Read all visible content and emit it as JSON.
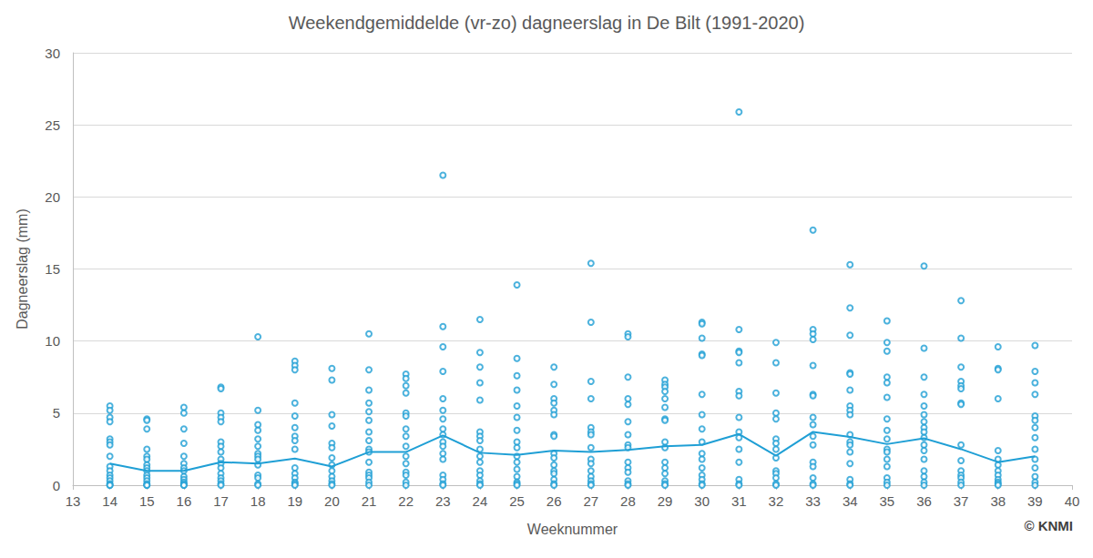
{
  "chart_data": {
    "type": "scatter",
    "title": "Weekendgemiddelde (vr-zo) dagneerslag in De Bilt (1991-2020)",
    "x_label": "Weeknummer",
    "y_label": "Dagneerslag (mm)",
    "annotation": "© KNMI",
    "xlim": [
      13,
      40
    ],
    "xticks": [
      13,
      14,
      15,
      16,
      17,
      18,
      19,
      20,
      21,
      22,
      23,
      24,
      25,
      26,
      27,
      28,
      29,
      30,
      31,
      32,
      33,
      34,
      35,
      36,
      37,
      38,
      39,
      40
    ],
    "ylim": [
      0,
      30
    ],
    "yticks": [
      0,
      5,
      10,
      15,
      20,
      25,
      30
    ],
    "grid": true,
    "series": [
      {
        "type": "scatter",
        "color": "#1f9fd5",
        "marker": "circle-open",
        "x": [
          14,
          14,
          14,
          14,
          14,
          14,
          14,
          14,
          14,
          14,
          14,
          14,
          14,
          14,
          14,
          14,
          15,
          15,
          15,
          15,
          15,
          15,
          15,
          15,
          15,
          15,
          15,
          15,
          15,
          15,
          15,
          16,
          16,
          16,
          16,
          16,
          16,
          16,
          16,
          16,
          16,
          16,
          16,
          16,
          16,
          17,
          17,
          17,
          17,
          17,
          17,
          17,
          17,
          17,
          17,
          17,
          17,
          17,
          17,
          17,
          17,
          18,
          18,
          18,
          18,
          18,
          18,
          18,
          18,
          18,
          18,
          18,
          18,
          18,
          18,
          19,
          19,
          19,
          19,
          19,
          19,
          19,
          19,
          19,
          19,
          19,
          19,
          19,
          19,
          19,
          20,
          20,
          20,
          20,
          20,
          20,
          20,
          20,
          20,
          20,
          20,
          20,
          20,
          21,
          21,
          21,
          21,
          21,
          21,
          21,
          21,
          21,
          21,
          21,
          21,
          21,
          21,
          21,
          21,
          22,
          22,
          22,
          22,
          22,
          22,
          22,
          22,
          22,
          22,
          22,
          22,
          22,
          22,
          22,
          23,
          23,
          23,
          23,
          23,
          23,
          23,
          23,
          23,
          23,
          23,
          23,
          23,
          23,
          23,
          23,
          23,
          24,
          24,
          24,
          24,
          24,
          24,
          24,
          24,
          24,
          24,
          24,
          24,
          24,
          24,
          24,
          24,
          25,
          25,
          25,
          25,
          25,
          25,
          25,
          25,
          25,
          25,
          25,
          25,
          25,
          25,
          25,
          25,
          26,
          26,
          26,
          26,
          26,
          26,
          26,
          26,
          26,
          26,
          26,
          26,
          26,
          26,
          26,
          26,
          27,
          27,
          27,
          27,
          27,
          27,
          27,
          27,
          27,
          27,
          27,
          27,
          27,
          27,
          27,
          28,
          28,
          28,
          28,
          28,
          28,
          28,
          28,
          28,
          28,
          28,
          28,
          28,
          28,
          28,
          29,
          29,
          29,
          29,
          29,
          29,
          29,
          29,
          29,
          29,
          29,
          29,
          29,
          29,
          29,
          29,
          30,
          30,
          30,
          30,
          30,
          30,
          30,
          30,
          30,
          30,
          30,
          30,
          30,
          30,
          30,
          30,
          31,
          31,
          31,
          31,
          31,
          31,
          31,
          31,
          31,
          31,
          31,
          31,
          31,
          31,
          31,
          32,
          32,
          32,
          32,
          32,
          32,
          32,
          32,
          32,
          32,
          32,
          32,
          32,
          32,
          33,
          33,
          33,
          33,
          33,
          33,
          33,
          33,
          33,
          33,
          33,
          33,
          33,
          33,
          33,
          33,
          34,
          34,
          34,
          34,
          34,
          34,
          34,
          34,
          34,
          34,
          34,
          34,
          34,
          34,
          34,
          34,
          34,
          35,
          35,
          35,
          35,
          35,
          35,
          35,
          35,
          35,
          35,
          35,
          35,
          35,
          35,
          35,
          35,
          36,
          36,
          36,
          36,
          36,
          36,
          36,
          36,
          36,
          36,
          36,
          36,
          36,
          36,
          36,
          36,
          36,
          37,
          37,
          37,
          37,
          37,
          37,
          37,
          37,
          37,
          37,
          37,
          37,
          37,
          37,
          37,
          38,
          38,
          38,
          38,
          38,
          38,
          38,
          38,
          38,
          38,
          38,
          38,
          38,
          39,
          39,
          39,
          39,
          39,
          39,
          39,
          39,
          39,
          39,
          39,
          39,
          39,
          39
        ],
        "values": [
          5.5,
          5.2,
          4.7,
          4.4,
          3.2,
          3.0,
          2.8,
          2.0,
          1.3,
          1.0,
          0.7,
          0.5,
          0.3,
          0.1,
          0,
          0,
          4.6,
          4.5,
          3.9,
          2.5,
          2.0,
          1.8,
          1.4,
          1.2,
          1.0,
          0.7,
          0.5,
          0.3,
          0.1,
          0,
          0,
          5.4,
          5.0,
          3.9,
          2.9,
          2.0,
          1.5,
          1.2,
          1.0,
          0.6,
          0.4,
          0.2,
          0.1,
          0,
          0,
          6.8,
          6.7,
          5.0,
          4.7,
          4.4,
          3.0,
          2.7,
          2.3,
          1.8,
          1.5,
          1.2,
          0.8,
          0.5,
          0.3,
          0.1,
          0,
          10.3,
          5.2,
          4.2,
          3.8,
          3.2,
          2.7,
          2.2,
          2.0,
          1.8,
          1.4,
          0.7,
          0.5,
          0.1,
          0,
          8.6,
          8.3,
          8.0,
          5.7,
          4.8,
          4.0,
          3.4,
          3.1,
          2.5,
          1.2,
          0.8,
          0.5,
          0.2,
          0.1,
          0,
          8.1,
          7.3,
          4.9,
          4.1,
          2.9,
          2.6,
          1.9,
          1.4,
          1.0,
          0.6,
          0.3,
          0.1,
          0,
          10.5,
          8.0,
          6.6,
          5.7,
          5.1,
          4.5,
          3.7,
          3.1,
          2.5,
          2.3,
          1.6,
          0.9,
          0.7,
          0.5,
          0.2,
          0,
          7.7,
          7.4,
          6.9,
          6.4,
          5.0,
          4.8,
          3.9,
          3.4,
          2.7,
          2.0,
          1.5,
          0.9,
          0.7,
          0.2,
          0,
          21.5,
          11.0,
          9.6,
          7.9,
          6.0,
          5.2,
          4.6,
          3.9,
          3.5,
          3.0,
          2.7,
          2.2,
          1.8,
          0.7,
          0.4,
          0.1,
          0,
          11.5,
          9.2,
          8.2,
          7.1,
          5.9,
          3.7,
          3.4,
          3.1,
          2.5,
          2.0,
          1.6,
          1.0,
          0.7,
          0.3,
          0.1,
          0,
          13.9,
          8.8,
          7.6,
          6.6,
          5.5,
          4.7,
          3.8,
          3.0,
          2.6,
          2.0,
          1.6,
          1.1,
          0.6,
          0.2,
          0.1,
          0,
          8.2,
          7.0,
          6.0,
          5.7,
          5.2,
          4.9,
          3.5,
          3.4,
          2.2,
          1.9,
          1.4,
          1.0,
          0.8,
          0.4,
          0.1,
          0,
          15.4,
          11.3,
          7.2,
          6.0,
          4.0,
          3.7,
          3.5,
          2.6,
          1.8,
          1.5,
          1.0,
          0.6,
          0.3,
          0.1,
          0,
          10.5,
          10.3,
          7.5,
          6.0,
          5.6,
          4.4,
          3.5,
          2.8,
          2.6,
          1.6,
          1.2,
          0.9,
          0.3,
          0.1,
          0,
          7.3,
          7.0,
          6.8,
          6.5,
          6.0,
          5.4,
          4.6,
          4.5,
          3.0,
          2.6,
          1.6,
          1.2,
          0.8,
          0.3,
          0.1,
          0,
          11.3,
          11.2,
          10.2,
          9.1,
          9.0,
          6.3,
          4.9,
          3.9,
          3.0,
          2.2,
          1.8,
          1.2,
          0.7,
          0.4,
          0.1,
          0,
          25.9,
          10.8,
          9.3,
          9.2,
          8.5,
          6.5,
          6.2,
          4.7,
          3.7,
          3.3,
          2.5,
          1.6,
          0.4,
          0.1,
          0,
          9.9,
          8.5,
          6.4,
          5.0,
          4.6,
          3.2,
          2.9,
          2.5,
          1.9,
          1.0,
          0.8,
          0.5,
          0.1,
          0,
          17.7,
          10.8,
          10.5,
          10.1,
          8.3,
          6.3,
          6.2,
          4.7,
          4.2,
          3.4,
          2.8,
          1.6,
          1.3,
          0.5,
          0.1,
          0,
          15.3,
          12.3,
          10.4,
          7.8,
          7.7,
          6.6,
          5.5,
          5.2,
          4.9,
          3.5,
          3.0,
          2.8,
          2.3,
          1.5,
          0.4,
          0.1,
          0,
          11.4,
          9.9,
          9.3,
          7.5,
          7.1,
          6.1,
          4.6,
          3.8,
          3.2,
          2.5,
          2.3,
          1.8,
          1.3,
          0.5,
          0.2,
          0,
          15.2,
          9.5,
          7.5,
          6.3,
          5.5,
          4.9,
          4.4,
          4.0,
          3.7,
          3.3,
          2.8,
          2.4,
          1.8,
          1.0,
          0.6,
          0.2,
          0,
          12.8,
          10.2,
          8.2,
          7.2,
          6.9,
          6.7,
          5.7,
          5.6,
          2.8,
          1.7,
          1.0,
          0.7,
          0.5,
          0.2,
          0,
          9.6,
          8.1,
          8.0,
          6.0,
          2.4,
          1.8,
          1.4,
          1.0,
          0.7,
          0.4,
          0.2,
          0.1,
          0,
          9.7,
          7.9,
          7.1,
          6.3,
          4.8,
          4.5,
          4.0,
          3.3,
          2.5,
          1.8,
          1.2,
          0.6,
          0.2,
          0
        ]
      },
      {
        "type": "line",
        "color": "#1f9fd5",
        "line_style": "solid",
        "x": [
          14,
          15,
          16,
          17,
          18,
          19,
          20,
          21,
          22,
          23,
          24,
          25,
          26,
          27,
          28,
          29,
          30,
          31,
          32,
          33,
          34,
          35,
          36,
          37,
          38,
          39
        ],
        "values": [
          1.5,
          1.0,
          1.0,
          1.6,
          1.5,
          1.85,
          1.3,
          2.3,
          2.3,
          3.45,
          2.25,
          2.1,
          2.4,
          2.3,
          2.45,
          2.7,
          2.8,
          3.55,
          2.05,
          3.7,
          3.35,
          2.85,
          3.25,
          2.5,
          1.6,
          2.0
        ]
      }
    ]
  }
}
